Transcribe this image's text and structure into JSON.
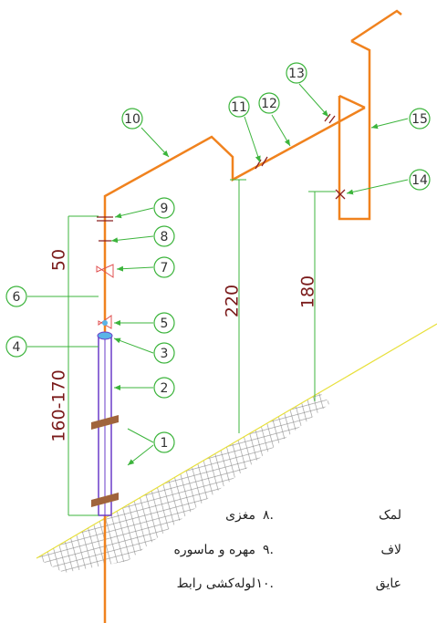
{
  "callouts": [
    "1",
    "2",
    "3",
    "4",
    "5",
    "6",
    "7",
    "8",
    "9",
    "10",
    "11",
    "12",
    "13",
    "14",
    "15"
  ],
  "dimensions": [
    "50",
    "160-170",
    "220",
    "180"
  ],
  "legend": [
    {
      "number": "۸.",
      "text": "مغزی"
    },
    {
      "number": "۹.",
      "text": "مهره و ماسوره"
    },
    {
      "number": "۱۰.",
      "text": "لوله‌کشی رابط"
    }
  ],
  "legend_cut": [
    "لمک",
    "لاف",
    "عایق"
  ]
}
